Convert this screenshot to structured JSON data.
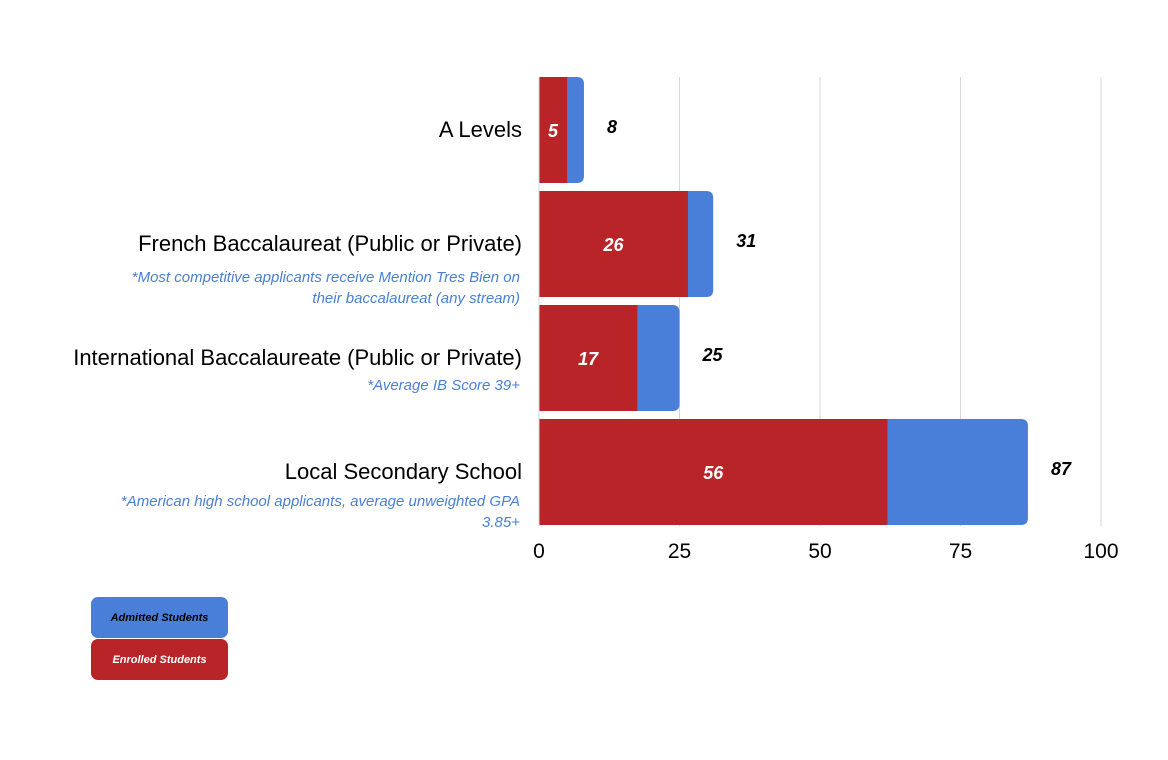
{
  "chart_data": {
    "type": "bar",
    "orientation": "horizontal",
    "stacked": false,
    "overlapping": true,
    "categories": [
      "A Levels",
      "French Baccalaureat (Public or Private)",
      "International Baccalaureate (Public or Private)",
      "Local Secondary School"
    ],
    "notes": [
      "",
      "*Most competitive applicants receive Mention Tres Bien on their baccalaureat (any stream)",
      "*Average IB Score 39+",
      "*American high school applicants, average unweighted GPA 3.85+"
    ],
    "series": [
      {
        "name": "Admitted Students",
        "values": [
          8,
          31,
          25,
          87
        ],
        "color": "#4a7fd9"
      },
      {
        "name": "Enrolled Students",
        "values": [
          5,
          26,
          17,
          56
        ],
        "color": "#b82428"
      }
    ],
    "enrolled_bar_lengths": [
      5,
      26.5,
      17.5,
      62
    ],
    "xlim": [
      0,
      100
    ],
    "x_ticks": [
      "0",
      "25",
      "50",
      "75",
      "100"
    ],
    "grid": true,
    "legend_position": "bottom-left",
    "xlabel": "",
    "ylabel": "",
    "title": ""
  }
}
